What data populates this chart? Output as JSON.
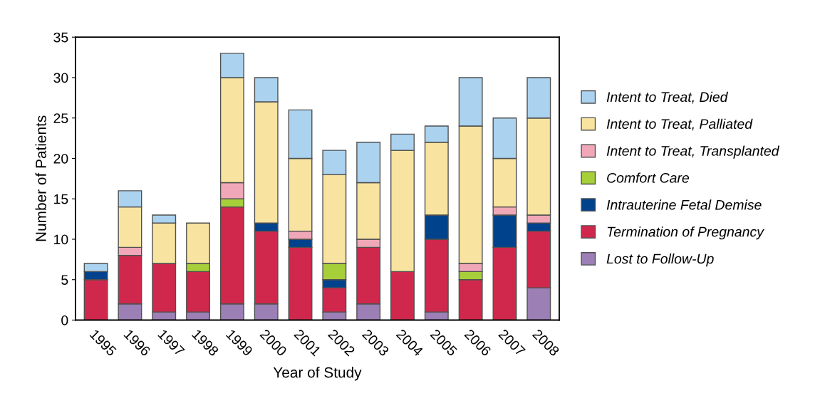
{
  "chart_data": {
    "type": "bar",
    "stacked": true,
    "xlabel": "Year of Study",
    "ylabel": "Number of Patients",
    "categories": [
      "1995",
      "1996",
      "1997",
      "1998",
      "1999",
      "2000",
      "2001",
      "2002",
      "2003",
      "2004",
      "2005",
      "2006",
      "2007",
      "2008"
    ],
    "series": [
      {
        "name": "Lost to Follow-Up",
        "color": "#9b7fb5",
        "values": [
          0,
          2,
          1,
          1,
          2,
          2,
          0,
          1,
          2,
          0,
          1,
          0,
          0,
          4
        ]
      },
      {
        "name": "Termination of Pregnancy",
        "color": "#d0284c",
        "values": [
          5,
          6,
          6,
          5,
          12,
          9,
          9,
          3,
          7,
          6,
          9,
          5,
          9,
          7
        ]
      },
      {
        "name": "Intrauterine Fetal Demise",
        "color": "#00428c",
        "values": [
          1,
          0,
          0,
          0,
          0,
          1,
          1,
          1,
          0,
          0,
          3,
          0,
          4,
          1
        ]
      },
      {
        "name": "Comfort Care",
        "color": "#a6cf3a",
        "values": [
          0,
          0,
          0,
          1,
          1,
          0,
          0,
          2,
          0,
          0,
          0,
          1,
          0,
          0
        ]
      },
      {
        "name": "Intent to Treat, Transplanted",
        "color": "#f0a8b8",
        "values": [
          0,
          1,
          0,
          0,
          2,
          0,
          1,
          0,
          1,
          0,
          0,
          1,
          1,
          1
        ]
      },
      {
        "name": "Intent to Treat, Palliated",
        "color": "#f8e4a0",
        "values": [
          0,
          5,
          5,
          5,
          13,
          15,
          9,
          11,
          7,
          15,
          9,
          17,
          6,
          12
        ]
      },
      {
        "name": "Intent to Treat, Died",
        "color": "#abd3f0",
        "values": [
          1,
          2,
          1,
          0,
          3,
          3,
          6,
          3,
          5,
          2,
          2,
          6,
          5,
          5
        ]
      }
    ],
    "ylim": [
      0,
      35
    ],
    "yticks": [
      0,
      5,
      10,
      15,
      20,
      25,
      30,
      35
    ],
    "grid": false,
    "legend": "right"
  }
}
